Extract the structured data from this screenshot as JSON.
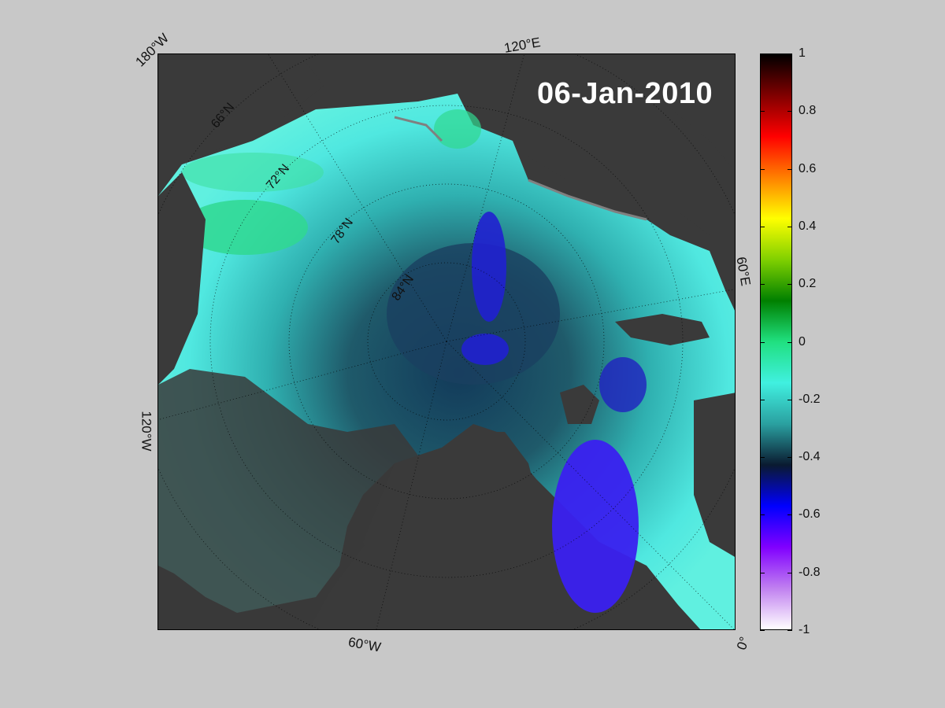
{
  "date_label": "06-Jan-2010",
  "longitude_labels": [
    "180°W",
    "120°E",
    "60°E",
    "0°",
    "60°W",
    "120°W"
  ],
  "latitude_labels": [
    "66°N",
    "72°N",
    "78°N",
    "84°N"
  ],
  "colorbar": {
    "ticks": [
      "1",
      "0.8",
      "0.6",
      "0.4",
      "0.2",
      "0",
      "-0.2",
      "-0.4",
      "-0.6",
      "-0.8",
      "-1"
    ],
    "min": -1,
    "max": 1,
    "stops": [
      "#ffffff",
      "#c080f0",
      "#8000ff",
      "#0000ff",
      "#0a1a30",
      "#2aa0a0",
      "#40f0e0",
      "#20e080",
      "#008000",
      "#80d000",
      "#ffff00",
      "#ff8000",
      "#ff0000",
      "#800000",
      "#000000"
    ]
  },
  "colors": {
    "background": "#c8c8c8",
    "land": "#3a3a3a",
    "ice_edge": "#808080"
  }
}
